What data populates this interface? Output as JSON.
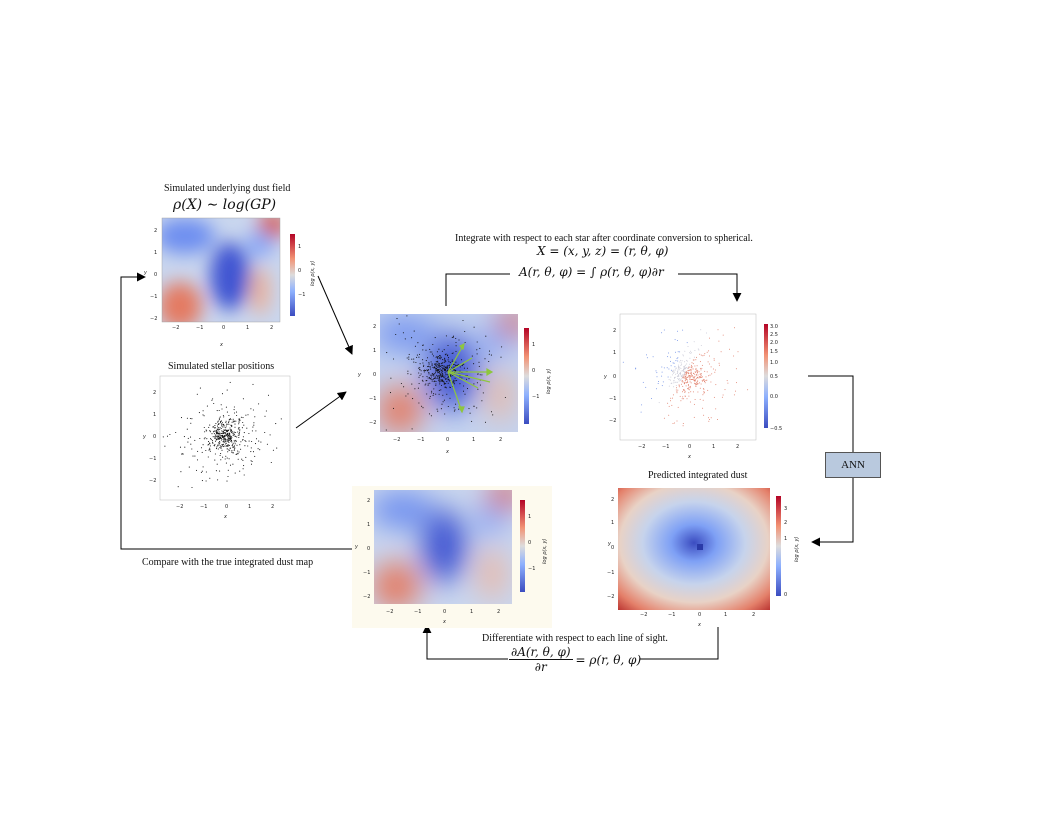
{
  "diagram": {
    "captions": {
      "dust_field_title": "Simulated underlying dust field",
      "dust_field_eq": "ρ(X) ∼ log(GP)",
      "stellar_title": "Simulated stellar positions",
      "integrate_title": "Integrate with respect to each star after coordinate conversion to spherical.",
      "integrate_eq1": "X = (x, y, z) = (r, θ, φ)",
      "integrate_eq2_lhs": "A(r, θ, φ) = ∫ ρ(r, θ, φ)∂r",
      "predicted_title": "Predicted integrated dust",
      "compare_title": "Compare with the true integrated dust map",
      "differentiate_title": "Differentiate with respect to each line of sight.",
      "diff_num": "∂A(r, θ, φ)",
      "diff_den": "∂r",
      "diff_rhs": "= ρ(r, θ, φ)"
    },
    "ann_label": "ANN",
    "axis": {
      "x": "x",
      "y": "y",
      "cbar": "log ρ(x, y)"
    },
    "panels": [
      {
        "id": "dust-field",
        "xticks": [
          "−2",
          "−1",
          "0",
          "1",
          "2"
        ],
        "yticks": [
          "2",
          "1",
          "0",
          "−1",
          "−2"
        ],
        "cticks": [
          "1",
          "0",
          "−1"
        ]
      },
      {
        "id": "stellar-positions",
        "xticks": [
          "−2",
          "−1",
          "0",
          "1",
          "2"
        ],
        "yticks": [
          "2",
          "1",
          "0",
          "−1",
          "−2"
        ]
      },
      {
        "id": "combined",
        "xticks": [
          "−2",
          "−1",
          "0",
          "1",
          "2"
        ],
        "yticks": [
          "2",
          "1",
          "0",
          "−1",
          "−2"
        ],
        "cticks": [
          "1",
          "0",
          "−1"
        ]
      },
      {
        "id": "integrated-stars",
        "xticks": [
          "−2",
          "−1",
          "0",
          "1",
          "2"
        ],
        "yticks": [
          "2",
          "1",
          "0",
          "−1",
          "−2"
        ],
        "cticks": [
          "3.0",
          "2.5",
          "2.0",
          "1.5",
          "1.0",
          "0.5",
          "0.0",
          "−0.5"
        ]
      },
      {
        "id": "predicted",
        "xticks": [
          "−2",
          "−1",
          "0",
          "1",
          "2"
        ],
        "yticks": [
          "2",
          "1",
          "0",
          "−1",
          "−2"
        ],
        "cticks": [
          "3",
          "2",
          "1",
          "0"
        ]
      },
      {
        "id": "derived-dust",
        "xticks": [
          "−2",
          "−1",
          "0",
          "1",
          "2"
        ],
        "yticks": [
          "2",
          "1",
          "0",
          "−1",
          "−2"
        ],
        "cticks": [
          "1",
          "0",
          "−1"
        ]
      }
    ],
    "colors": {
      "red": "#c9503f",
      "white": "#e2e2e2",
      "blue": "#3a4fd0",
      "arrow_green": "#8ec63f",
      "ann_fill": "#b9c9de"
    }
  }
}
